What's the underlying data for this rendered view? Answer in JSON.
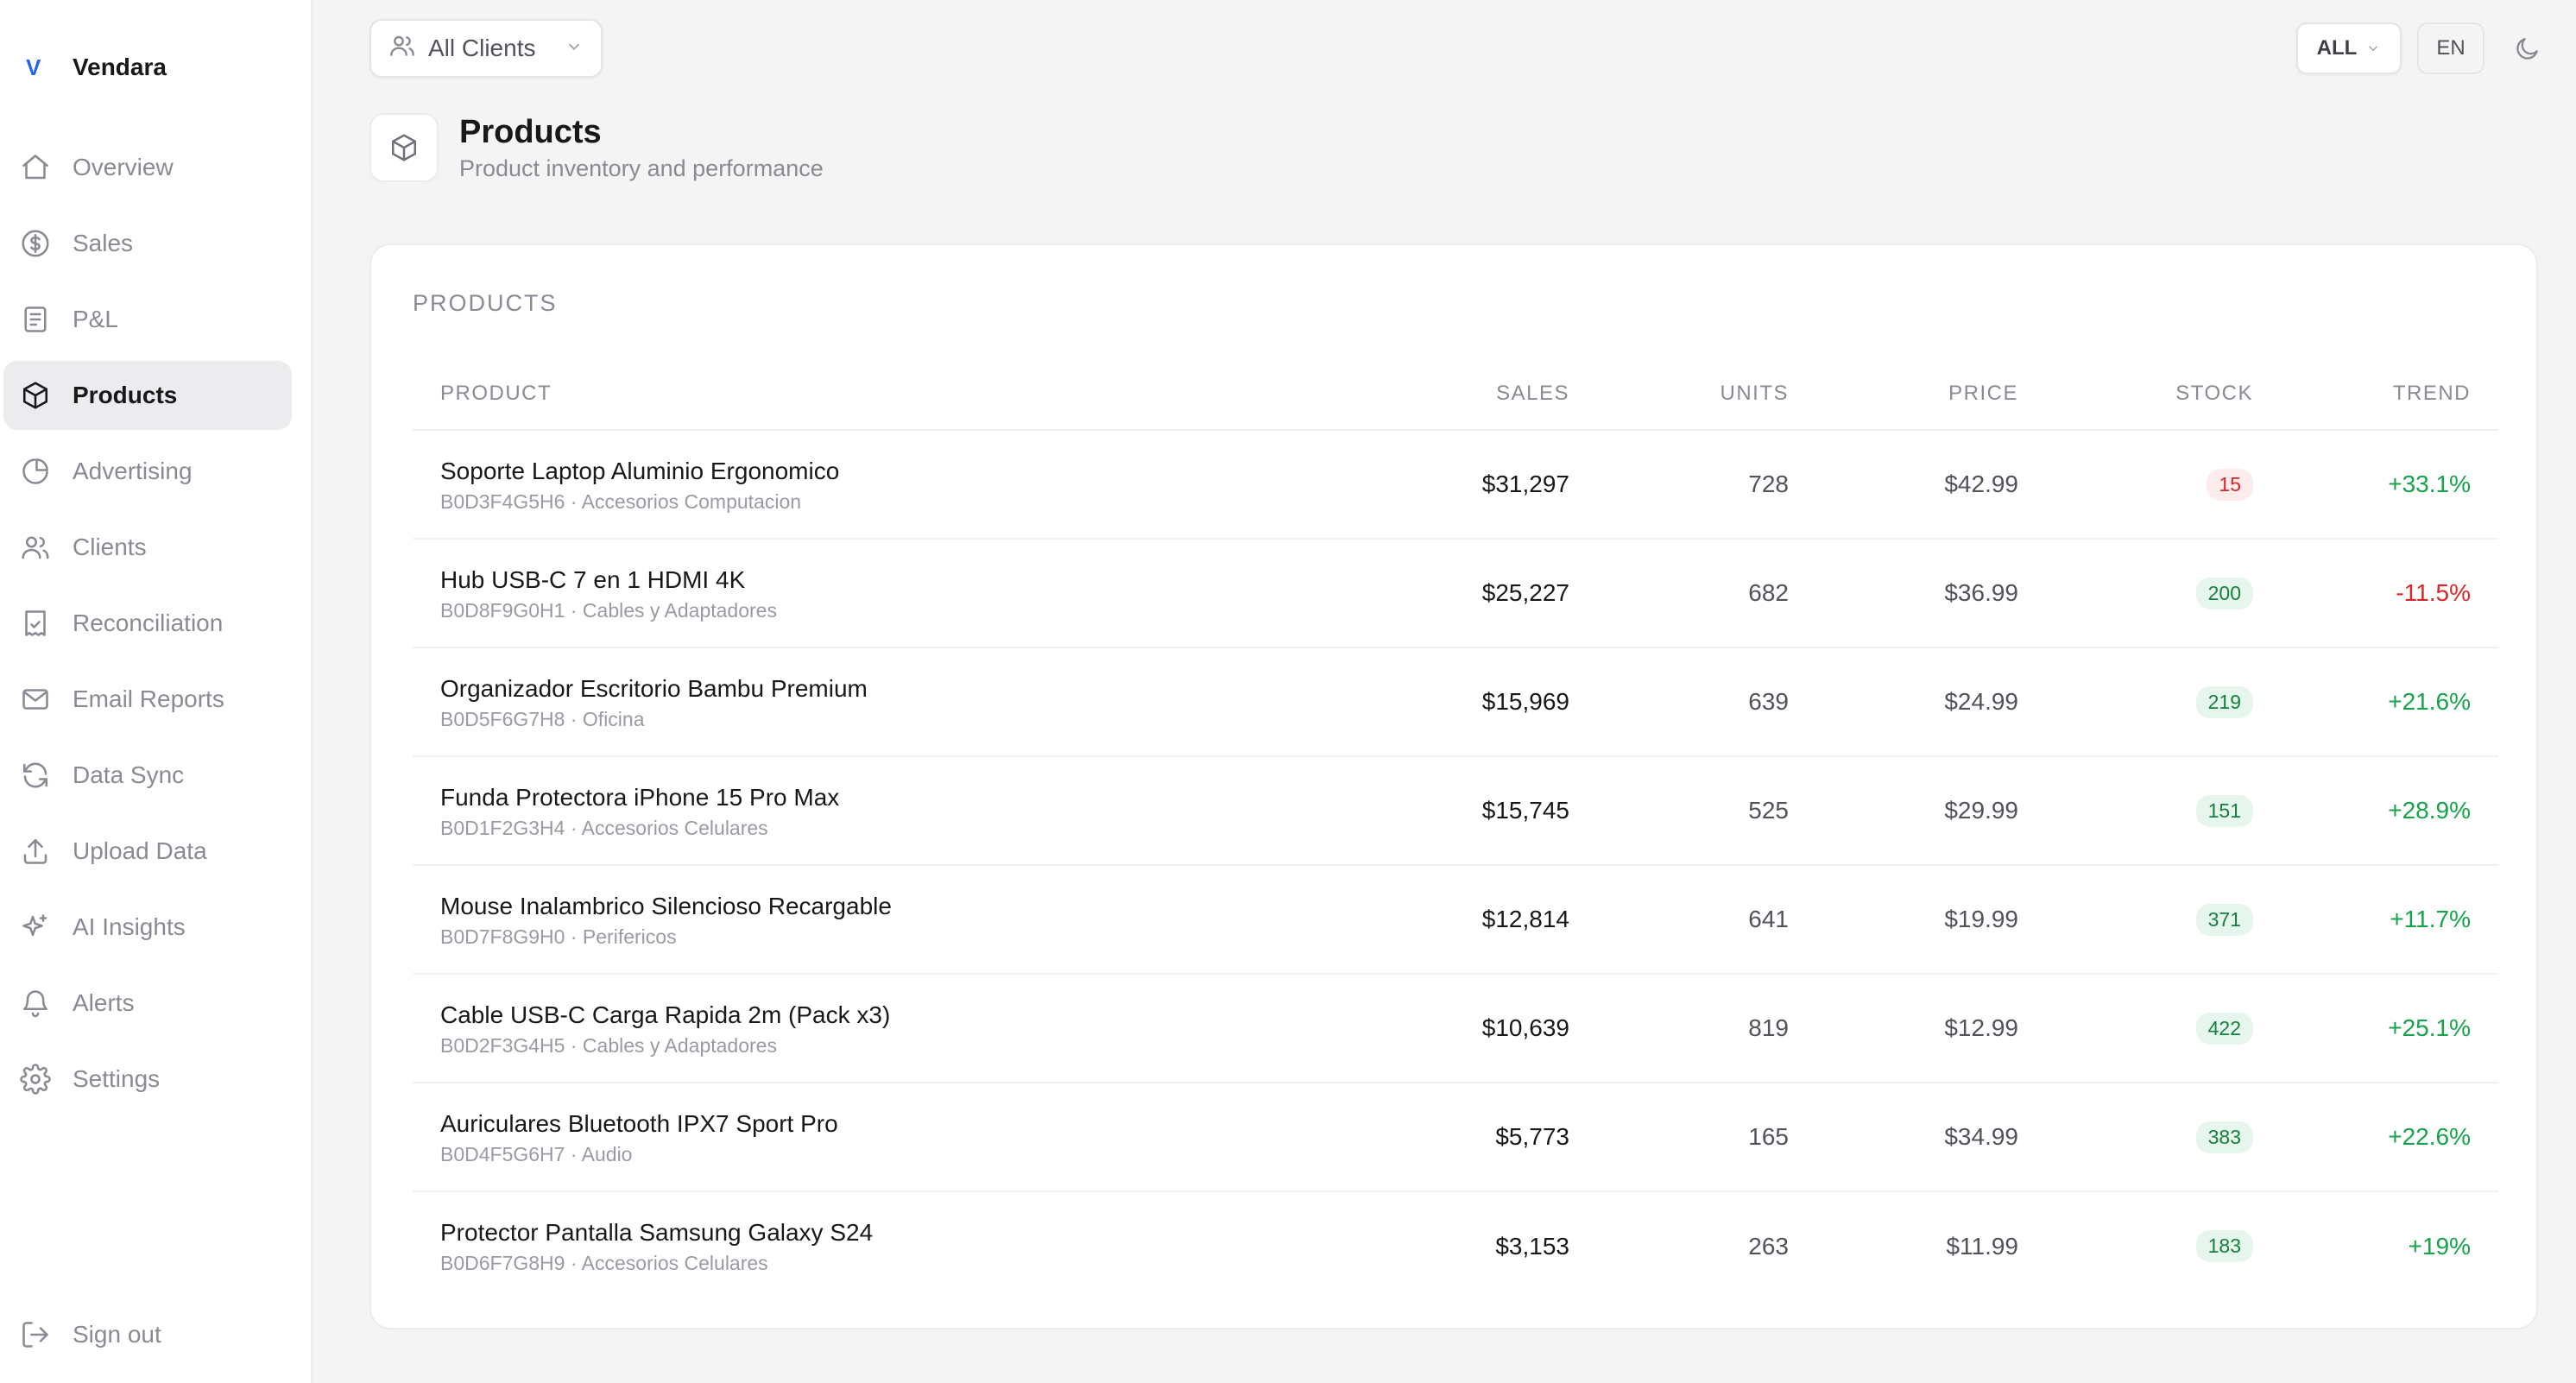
{
  "brand": {
    "mark": "V",
    "name": "Vendara"
  },
  "sidebar": {
    "items": [
      {
        "label": "Overview",
        "icon": "home-icon",
        "active": false
      },
      {
        "label": "Sales",
        "icon": "dollar-circle-icon",
        "active": false
      },
      {
        "label": "P&L",
        "icon": "document-icon",
        "active": false
      },
      {
        "label": "Products",
        "icon": "box-icon",
        "active": true
      },
      {
        "label": "Advertising",
        "icon": "pie-chart-icon",
        "active": false
      },
      {
        "label": "Clients",
        "icon": "users-icon",
        "active": false
      },
      {
        "label": "Reconciliation",
        "icon": "receipt-icon",
        "active": false
      },
      {
        "label": "Email Reports",
        "icon": "mail-icon",
        "active": false
      },
      {
        "label": "Data Sync",
        "icon": "refresh-icon",
        "active": false
      },
      {
        "label": "Upload Data",
        "icon": "upload-icon",
        "active": false
      },
      {
        "label": "AI Insights",
        "icon": "sparkles-icon",
        "active": false
      },
      {
        "label": "Alerts",
        "icon": "bell-icon",
        "active": false
      },
      {
        "label": "Settings",
        "icon": "gear-icon",
        "active": false
      }
    ],
    "sign_out": "Sign out"
  },
  "topbar": {
    "client_select": "All Clients",
    "range_select": "ALL",
    "language": "EN"
  },
  "page": {
    "title": "Products",
    "subtitle": "Product inventory and performance"
  },
  "products_card": {
    "title": "PRODUCTS",
    "columns": [
      "PRODUCT",
      "SALES",
      "UNITS",
      "PRICE",
      "STOCK",
      "TREND"
    ],
    "rows": [
      {
        "name": "Soporte Laptop Aluminio Ergonomico",
        "sku": "B0D3F4G5H6",
        "category": "Accesorios Computacion",
        "sales": "$31,297",
        "units": "728",
        "price": "$42.99",
        "stock": "15",
        "stock_status": "low",
        "trend": "+33.1%",
        "trend_dir": "up"
      },
      {
        "name": "Hub USB-C 7 en 1 HDMI 4K",
        "sku": "B0D8F9G0H1",
        "category": "Cables y Adaptadores",
        "sales": "$25,227",
        "units": "682",
        "price": "$36.99",
        "stock": "200",
        "stock_status": "ok",
        "trend": "-11.5%",
        "trend_dir": "down"
      },
      {
        "name": "Organizador Escritorio Bambu Premium",
        "sku": "B0D5F6G7H8",
        "category": "Oficina",
        "sales": "$15,969",
        "units": "639",
        "price": "$24.99",
        "stock": "219",
        "stock_status": "ok",
        "trend": "+21.6%",
        "trend_dir": "up"
      },
      {
        "name": "Funda Protectora iPhone 15 Pro Max",
        "sku": "B0D1F2G3H4",
        "category": "Accesorios Celulares",
        "sales": "$15,745",
        "units": "525",
        "price": "$29.99",
        "stock": "151",
        "stock_status": "ok",
        "trend": "+28.9%",
        "trend_dir": "up"
      },
      {
        "name": "Mouse Inalambrico Silencioso Recargable",
        "sku": "B0D7F8G9H0",
        "category": "Perifericos",
        "sales": "$12,814",
        "units": "641",
        "price": "$19.99",
        "stock": "371",
        "stock_status": "ok",
        "trend": "+11.7%",
        "trend_dir": "up"
      },
      {
        "name": "Cable USB-C Carga Rapida 2m (Pack x3)",
        "sku": "B0D2F3G4H5",
        "category": "Cables y Adaptadores",
        "sales": "$10,639",
        "units": "819",
        "price": "$12.99",
        "stock": "422",
        "stock_status": "ok",
        "trend": "+25.1%",
        "trend_dir": "up"
      },
      {
        "name": "Auriculares Bluetooth IPX7 Sport Pro",
        "sku": "B0D4F5G6H7",
        "category": "Audio",
        "sales": "$5,773",
        "units": "165",
        "price": "$34.99",
        "stock": "383",
        "stock_status": "ok",
        "trend": "+22.6%",
        "trend_dir": "up"
      },
      {
        "name": "Protector Pantalla Samsung Galaxy S24",
        "sku": "B0D6F7G8H9",
        "category": "Accesorios Celulares",
        "sales": "$3,153",
        "units": "263",
        "price": "$11.99",
        "stock": "183",
        "stock_status": "ok",
        "trend": "+19%",
        "trend_dir": "up"
      }
    ]
  },
  "colors": {
    "accent": "#2563eb",
    "positive": "#16a34a",
    "negative": "#dc2626",
    "active_bg": "#ececee"
  }
}
